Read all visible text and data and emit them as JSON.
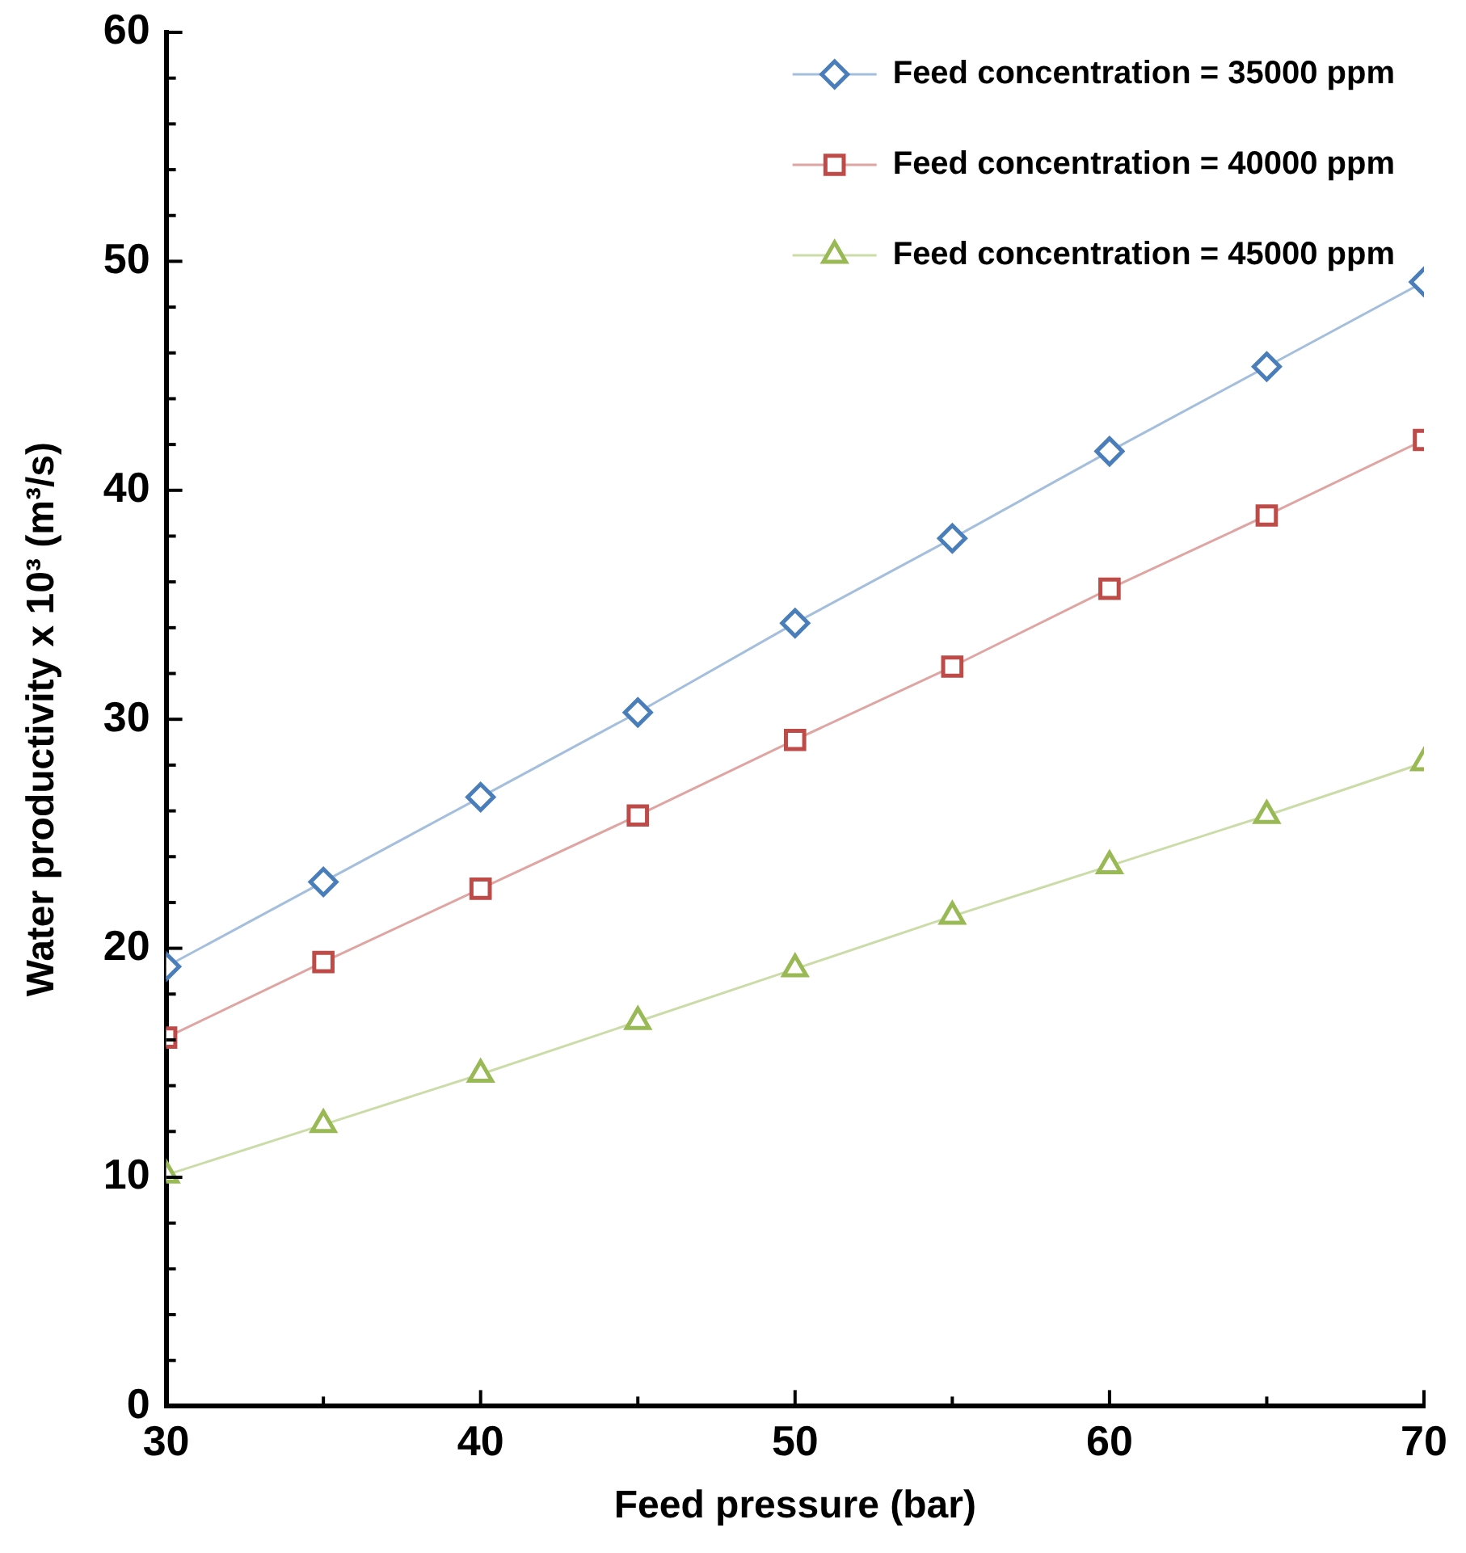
{
  "chart_data": {
    "type": "line",
    "xlabel": "Feed pressure (bar)",
    "ylabel": "Water productivity x 10³ (m³/s)",
    "x": [
      30,
      35,
      40,
      45,
      50,
      55,
      60,
      65,
      70
    ],
    "xlim": [
      30,
      70
    ],
    "xticks": [
      30,
      {
        "value": 35,
        "label": null
      },
      40,
      {
        "value": 45,
        "label": null
      },
      50,
      {
        "value": 55,
        "label": null
      },
      60,
      {
        "value": 65,
        "label": null
      },
      70
    ],
    "ylim": [
      0,
      60
    ],
    "yticks": [
      0,
      {
        "value": 2,
        "label": null
      },
      {
        "value": 4,
        "label": null
      },
      {
        "value": 6,
        "label": null
      },
      {
        "value": 8,
        "label": null
      },
      10,
      {
        "value": 12,
        "label": null
      },
      {
        "value": 14,
        "label": null
      },
      {
        "value": 16,
        "label": null
      },
      {
        "value": 18,
        "label": null
      },
      20,
      {
        "value": 22,
        "label": null
      },
      {
        "value": 24,
        "label": null
      },
      {
        "value": 26,
        "label": null
      },
      {
        "value": 28,
        "label": null
      },
      30,
      {
        "value": 32,
        "label": null
      },
      {
        "value": 34,
        "label": null
      },
      {
        "value": 36,
        "label": null
      },
      {
        "value": 38,
        "label": null
      },
      40,
      {
        "value": 42,
        "label": null
      },
      {
        "value": 44,
        "label": null
      },
      {
        "value": 46,
        "label": null
      },
      {
        "value": 48,
        "label": null
      },
      50,
      {
        "value": 52,
        "label": null
      },
      {
        "value": 54,
        "label": null
      },
      {
        "value": 56,
        "label": null
      },
      {
        "value": 58,
        "label": null
      },
      60
    ],
    "grid": false,
    "legend": "top right",
    "line_style": "solid",
    "series": [
      {
        "name": "Feed concentration = 35000 ppm",
        "color": "#4a7ebb",
        "marker": "diamond",
        "values": [
          19.2,
          22.9,
          26.6,
          30.3,
          34.2,
          37.9,
          41.7,
          45.4,
          49.1
        ]
      },
      {
        "name": "Feed concentration = 40000 ppm",
        "color": "#be4b48",
        "marker": "square",
        "values": [
          16.1,
          19.4,
          22.6,
          25.8,
          29.1,
          32.3,
          35.7,
          38.9,
          42.2
        ]
      },
      {
        "name": "Feed concentration = 45000 ppm",
        "color": "#98b954",
        "marker": "triangle",
        "values": [
          10.1,
          12.3,
          14.5,
          16.8,
          19.1,
          21.4,
          23.6,
          25.8,
          28.1
        ]
      }
    ]
  }
}
